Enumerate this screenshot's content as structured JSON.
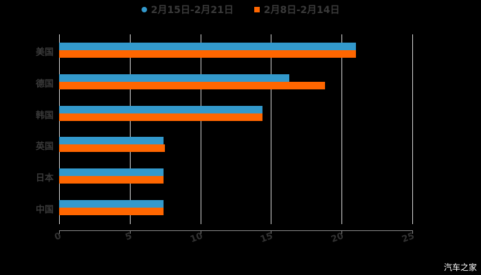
{
  "chart_data": {
    "type": "bar",
    "orientation": "horizontal",
    "title": "",
    "xlabel": "",
    "ylabel": "",
    "categories": [
      "美国",
      "德国",
      "韩国",
      "英国",
      "日本",
      "中国"
    ],
    "series": [
      {
        "name": "2月15日-2月21日",
        "color": "#3399cc",
        "values": [
          21.0,
          16.3,
          14.4,
          7.4,
          7.4,
          7.4
        ]
      },
      {
        "name": "2月8日-2月14日",
        "color": "#ff6600",
        "values": [
          21.0,
          18.8,
          14.4,
          7.5,
          7.4,
          7.4
        ]
      }
    ],
    "xlim": [
      0,
      25
    ],
    "xticks": [
      "0",
      "5",
      "10",
      "15",
      "20",
      "25"
    ],
    "grid": true,
    "legend_position": "top"
  },
  "legend": {
    "series1": "2月15日-2月21日",
    "series2": "2月8日-2月14日"
  },
  "watermark": "汽车之家"
}
